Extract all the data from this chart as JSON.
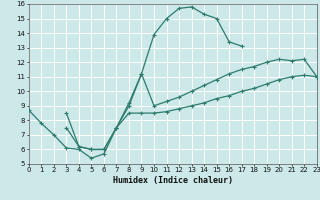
{
  "xlabel": "Humidex (Indice chaleur)",
  "xlim": [
    0,
    23
  ],
  "ylim": [
    5,
    16
  ],
  "xticks": [
    0,
    1,
    2,
    3,
    4,
    5,
    6,
    7,
    8,
    9,
    10,
    11,
    12,
    13,
    14,
    15,
    16,
    17,
    18,
    19,
    20,
    21,
    22,
    23
  ],
  "yticks": [
    5,
    6,
    7,
    8,
    9,
    10,
    11,
    12,
    13,
    14,
    15,
    16
  ],
  "line_color": "#2d7c6e",
  "bg_color": "#cce8e8",
  "grid_color": "#ffffff",
  "line1_x": [
    0,
    1,
    2,
    3,
    4,
    5,
    6,
    7,
    8,
    9,
    10,
    11,
    12,
    13,
    14,
    15,
    16,
    17
  ],
  "line1_y": [
    8.7,
    7.8,
    7.0,
    6.1,
    6.0,
    5.4,
    5.7,
    7.5,
    9.2,
    11.2,
    13.9,
    15.0,
    15.7,
    15.8,
    15.3,
    15.0,
    13.4,
    13.1
  ],
  "line2_x": [
    3,
    4,
    5,
    6,
    7,
    8,
    9,
    10,
    11,
    12,
    13,
    14,
    15,
    16,
    17,
    18,
    19,
    20,
    21,
    22,
    23
  ],
  "line2_y": [
    7.5,
    6.2,
    6.0,
    6.0,
    7.5,
    9.0,
    11.2,
    9.0,
    9.3,
    9.6,
    10.0,
    10.4,
    10.8,
    11.2,
    11.5,
    11.7,
    12.0,
    12.2,
    12.1,
    12.2,
    11.0
  ],
  "line3_x": [
    3,
    4,
    5,
    6,
    7,
    8,
    9,
    10,
    11,
    12,
    13,
    14,
    15,
    16,
    17,
    18,
    19,
    20,
    21,
    22,
    23
  ],
  "line3_y": [
    8.5,
    6.2,
    6.0,
    6.0,
    7.5,
    8.5,
    8.5,
    8.5,
    8.6,
    8.8,
    9.0,
    9.2,
    9.5,
    9.7,
    10.0,
    10.2,
    10.5,
    10.8,
    11.0,
    11.1,
    11.0
  ]
}
